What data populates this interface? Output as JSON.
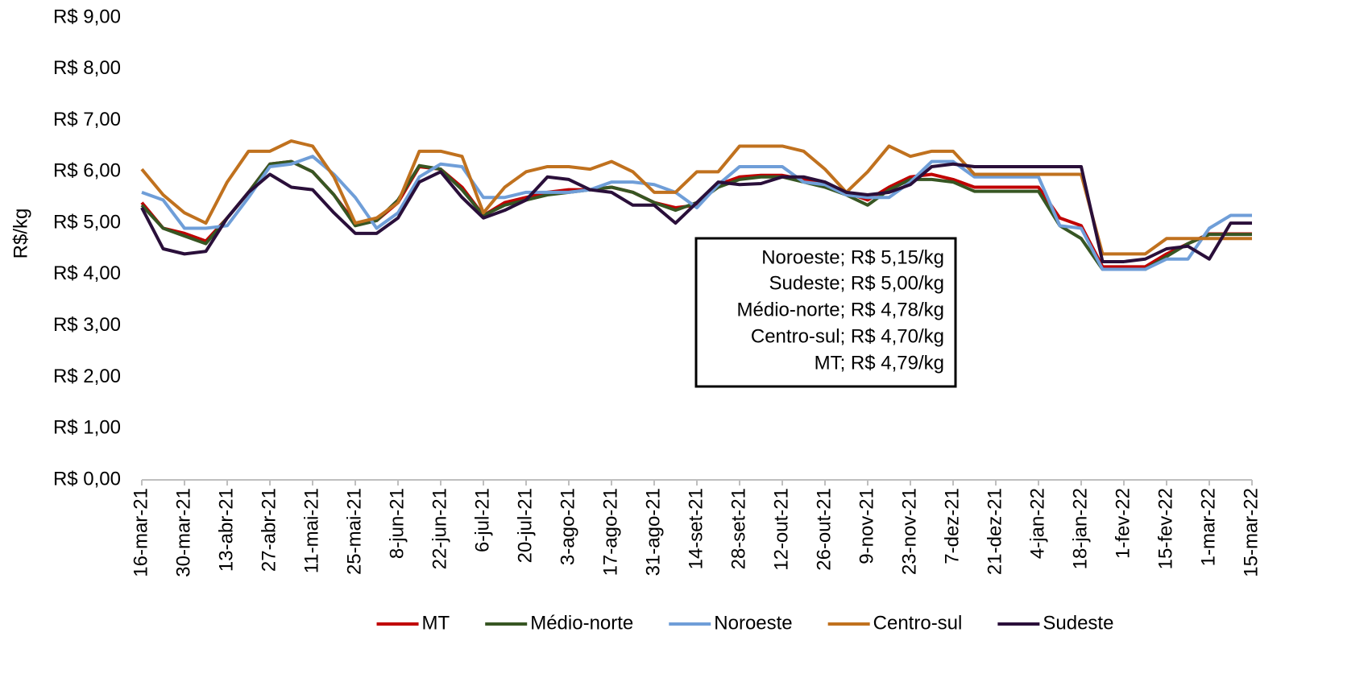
{
  "chart_data": {
    "type": "line",
    "y_label": "R$/kg",
    "categories": [
      "16-mar-21",
      null,
      "30-mar-21",
      null,
      "13-abr-21",
      null,
      "27-abr-21",
      null,
      "11-mai-21",
      null,
      "25-mai-21",
      null,
      "8-jun-21",
      null,
      "22-jun-21",
      null,
      "6-jul-21",
      null,
      "20-jul-21",
      null,
      "3-ago-21",
      null,
      "17-ago-21",
      null,
      "31-ago-21",
      null,
      "14-set-21",
      null,
      "28-set-21",
      null,
      "12-out-21",
      null,
      "26-out-21",
      null,
      "9-nov-21",
      null,
      "23-nov-21",
      null,
      "7-dez-21",
      null,
      "21-dez-21",
      null,
      "4-jan-22",
      null,
      "18-jan-22",
      null,
      "1-fev-22",
      null,
      "15-fev-22",
      null,
      "1-mar-22",
      null,
      "15-mar-22"
    ],
    "series": [
      {
        "name": "MT",
        "color": "#c00000",
        "values": [
          5.4,
          4.9,
          4.8,
          4.65,
          5.1,
          5.6,
          6.15,
          6.2,
          6.0,
          5.55,
          5.0,
          5.05,
          5.4,
          6.1,
          6.05,
          5.7,
          5.15,
          5.4,
          5.5,
          5.6,
          5.65,
          5.65,
          5.7,
          5.6,
          5.4,
          5.3,
          5.35,
          5.75,
          5.9,
          5.93,
          5.93,
          5.85,
          5.75,
          5.6,
          5.45,
          5.7,
          5.9,
          5.95,
          5.85,
          5.7,
          5.7,
          5.7,
          5.7,
          5.1,
          4.95,
          4.15,
          4.15,
          4.15,
          4.4,
          4.6,
          4.79,
          4.79,
          4.79
        ]
      },
      {
        "name": "Médio-norte",
        "color": "#375623",
        "values": [
          5.35,
          4.9,
          4.75,
          4.6,
          5.1,
          5.6,
          6.15,
          6.2,
          6.0,
          5.55,
          4.95,
          5.05,
          5.45,
          6.12,
          6.05,
          5.65,
          5.15,
          5.35,
          5.45,
          5.55,
          5.6,
          5.65,
          5.7,
          5.6,
          5.4,
          5.25,
          5.4,
          5.7,
          5.85,
          5.9,
          5.9,
          5.8,
          5.7,
          5.55,
          5.35,
          5.65,
          5.85,
          5.85,
          5.8,
          5.62,
          5.62,
          5.62,
          5.62,
          4.95,
          4.7,
          4.1,
          4.1,
          4.1,
          4.35,
          4.6,
          4.78,
          4.78,
          4.78
        ]
      },
      {
        "name": "Noroeste",
        "color": "#6f9ed8",
        "values": [
          5.6,
          5.45,
          4.9,
          4.9,
          4.95,
          5.5,
          6.1,
          6.15,
          6.3,
          5.95,
          5.5,
          4.9,
          5.2,
          5.9,
          6.15,
          6.1,
          5.5,
          5.5,
          5.6,
          5.6,
          5.6,
          5.65,
          5.8,
          5.8,
          5.75,
          5.6,
          5.3,
          5.75,
          6.1,
          6.1,
          6.1,
          5.8,
          5.75,
          5.55,
          5.5,
          5.5,
          5.8,
          6.2,
          6.2,
          5.9,
          5.9,
          5.9,
          5.9,
          4.95,
          4.9,
          4.1,
          4.1,
          4.1,
          4.3,
          4.3,
          4.9,
          5.15,
          5.15
        ]
      },
      {
        "name": "Centro-sul",
        "color": "#c0711e",
        "values": [
          6.05,
          5.55,
          5.2,
          5.0,
          5.8,
          6.4,
          6.4,
          6.6,
          6.5,
          5.9,
          5.0,
          5.1,
          5.4,
          6.4,
          6.4,
          6.3,
          5.2,
          5.7,
          6.0,
          6.1,
          6.1,
          6.05,
          6.2,
          6.0,
          5.6,
          5.6,
          6.0,
          6.0,
          6.5,
          6.5,
          6.5,
          6.4,
          6.05,
          5.6,
          6.0,
          6.5,
          6.3,
          6.4,
          6.4,
          5.95,
          5.95,
          5.95,
          5.95,
          5.95,
          5.95,
          4.4,
          4.4,
          4.4,
          4.7,
          4.7,
          4.7,
          4.7,
          4.7
        ]
      },
      {
        "name": "Sudeste",
        "color": "#2a0f3a",
        "values": [
          5.3,
          4.5,
          4.4,
          4.45,
          5.1,
          5.6,
          5.95,
          5.7,
          5.65,
          5.2,
          4.8,
          4.8,
          5.1,
          5.8,
          6.0,
          5.5,
          5.1,
          5.25,
          5.45,
          5.9,
          5.85,
          5.65,
          5.6,
          5.35,
          5.35,
          5.0,
          5.4,
          5.8,
          5.75,
          5.77,
          5.9,
          5.9,
          5.8,
          5.6,
          5.55,
          5.6,
          5.75,
          6.1,
          6.15,
          6.1,
          6.1,
          6.1,
          6.1,
          6.1,
          6.1,
          4.25,
          4.25,
          4.3,
          4.5,
          4.55,
          4.3,
          5.0,
          5.0
        ]
      }
    ],
    "ylim": [
      0,
      9
    ],
    "yticks": [
      {
        "value": 0,
        "label": "R$ 0,00"
      },
      {
        "value": 1,
        "label": "R$ 1,00"
      },
      {
        "value": 2,
        "label": "R$ 2,00"
      },
      {
        "value": 3,
        "label": "R$ 3,00"
      },
      {
        "value": 4,
        "label": "R$ 4,00"
      },
      {
        "value": 5,
        "label": "R$ 5,00"
      },
      {
        "value": 6,
        "label": "R$ 6,00"
      },
      {
        "value": 7,
        "label": "R$ 7,00"
      },
      {
        "value": 8,
        "label": "R$ 8,00"
      },
      {
        "value": 9,
        "label": "R$ 9,00"
      }
    ],
    "grid": false,
    "legend": "bottom",
    "annotations": [
      "Noroeste; R$ 5,15/kg",
      "Sudeste; R$ 5,00/kg",
      "Médio-norte; R$ 4,78/kg",
      "Centro-sul; R$ 4,70/kg",
      "MT; R$ 4,79/kg"
    ]
  }
}
